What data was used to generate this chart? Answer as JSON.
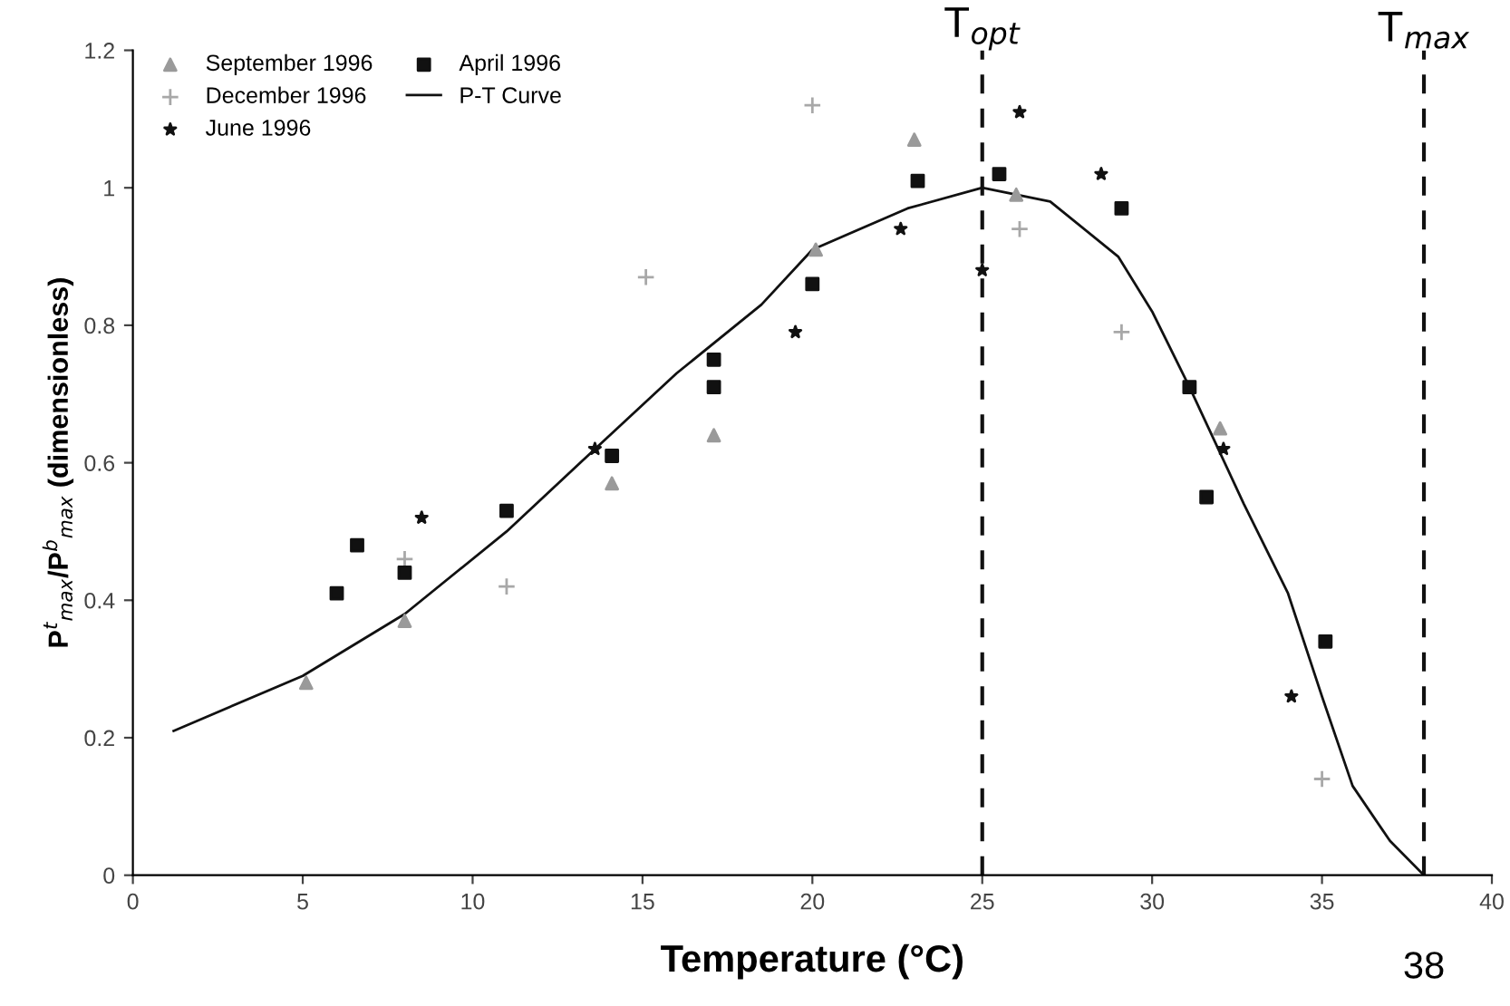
{
  "chart_data": {
    "type": "scatter",
    "xlabel": "Temperature (°C)",
    "ylabel": "P$^{t}$$_{max}$/P$^{b}$$_{max}$ (dimensionless)",
    "xlim": [
      0,
      40
    ],
    "xticks": [
      0,
      5,
      10,
      15,
      20,
      25,
      30,
      35,
      40
    ],
    "ylim": [
      0,
      1.2
    ],
    "yticks": [
      0,
      0.2,
      0.4,
      0.6,
      0.8,
      1,
      1.2
    ],
    "grid": false,
    "legend": "top left",
    "series": [
      {
        "name": "September 1996",
        "color": "#9a9a9a",
        "marker": "triangle",
        "x": [
          23.0,
          26.0,
          20.1,
          14.1,
          17.1,
          32.0,
          8.0,
          5.1
        ],
        "values": [
          1.07,
          0.99,
          0.91,
          0.57,
          0.64,
          0.65,
          0.37,
          0.28
        ]
      },
      {
        "name": "December 1996",
        "color": "#a8a8a8",
        "marker": "cross",
        "x": [
          20.0,
          15.1,
          26.1,
          35.0,
          11.0,
          8.0,
          29.1
        ],
        "values": [
          1.12,
          0.87,
          0.94,
          0.14,
          0.42,
          0.46,
          0.79
        ]
      },
      {
        "name": "June 1996",
        "color": "#111111",
        "marker": "star",
        "x": [
          26.1,
          25.0,
          19.5,
          22.6,
          28.5,
          32.1,
          34.1,
          8.5,
          13.6
        ],
        "values": [
          1.11,
          0.88,
          0.79,
          0.94,
          1.02,
          0.62,
          0.26,
          0.52,
          0.62
        ]
      },
      {
        "name": "April 1996",
        "color": "#111111",
        "marker": "square",
        "x": [
          23.1,
          25.5,
          29.1,
          20.0,
          31.1,
          31.6,
          35.1,
          17.1,
          17.1,
          14.1,
          11.0,
          6.6,
          6.0,
          8.0
        ],
        "values": [
          1.01,
          1.02,
          0.97,
          0.86,
          0.71,
          0.55,
          0.34,
          0.75,
          0.71,
          0.61,
          0.53,
          0.48,
          0.41,
          0.44
        ]
      },
      {
        "name": "P-T Curve",
        "type": "line",
        "color": "#111111",
        "marker": "none",
        "line_style": "solid",
        "x": [
          1.2,
          5,
          8,
          11,
          13.6,
          16,
          18.5,
          20,
          22.8,
          25,
          27,
          29,
          30,
          31.1,
          32.7,
          34.0,
          35.0,
          35.9,
          37.0,
          38
        ],
        "values": [
          0.21,
          0.29,
          0.38,
          0.5,
          0.62,
          0.73,
          0.83,
          0.91,
          0.97,
          1.0,
          0.98,
          0.9,
          0.82,
          0.71,
          0.54,
          0.41,
          0.26,
          0.13,
          0.05,
          0
        ]
      }
    ],
    "ref_lines": [
      {
        "axis": "x",
        "value": 25,
        "label": "T$_{opt}$",
        "color": "#111111",
        "line_style": "dashed"
      },
      {
        "axis": "x",
        "value": 38,
        "label": "T$_{max}$",
        "color": "#111111",
        "line_style": "dashed"
      }
    ],
    "annotations": [
      {
        "text": "38",
        "x": 38,
        "y": 0
      }
    ]
  }
}
